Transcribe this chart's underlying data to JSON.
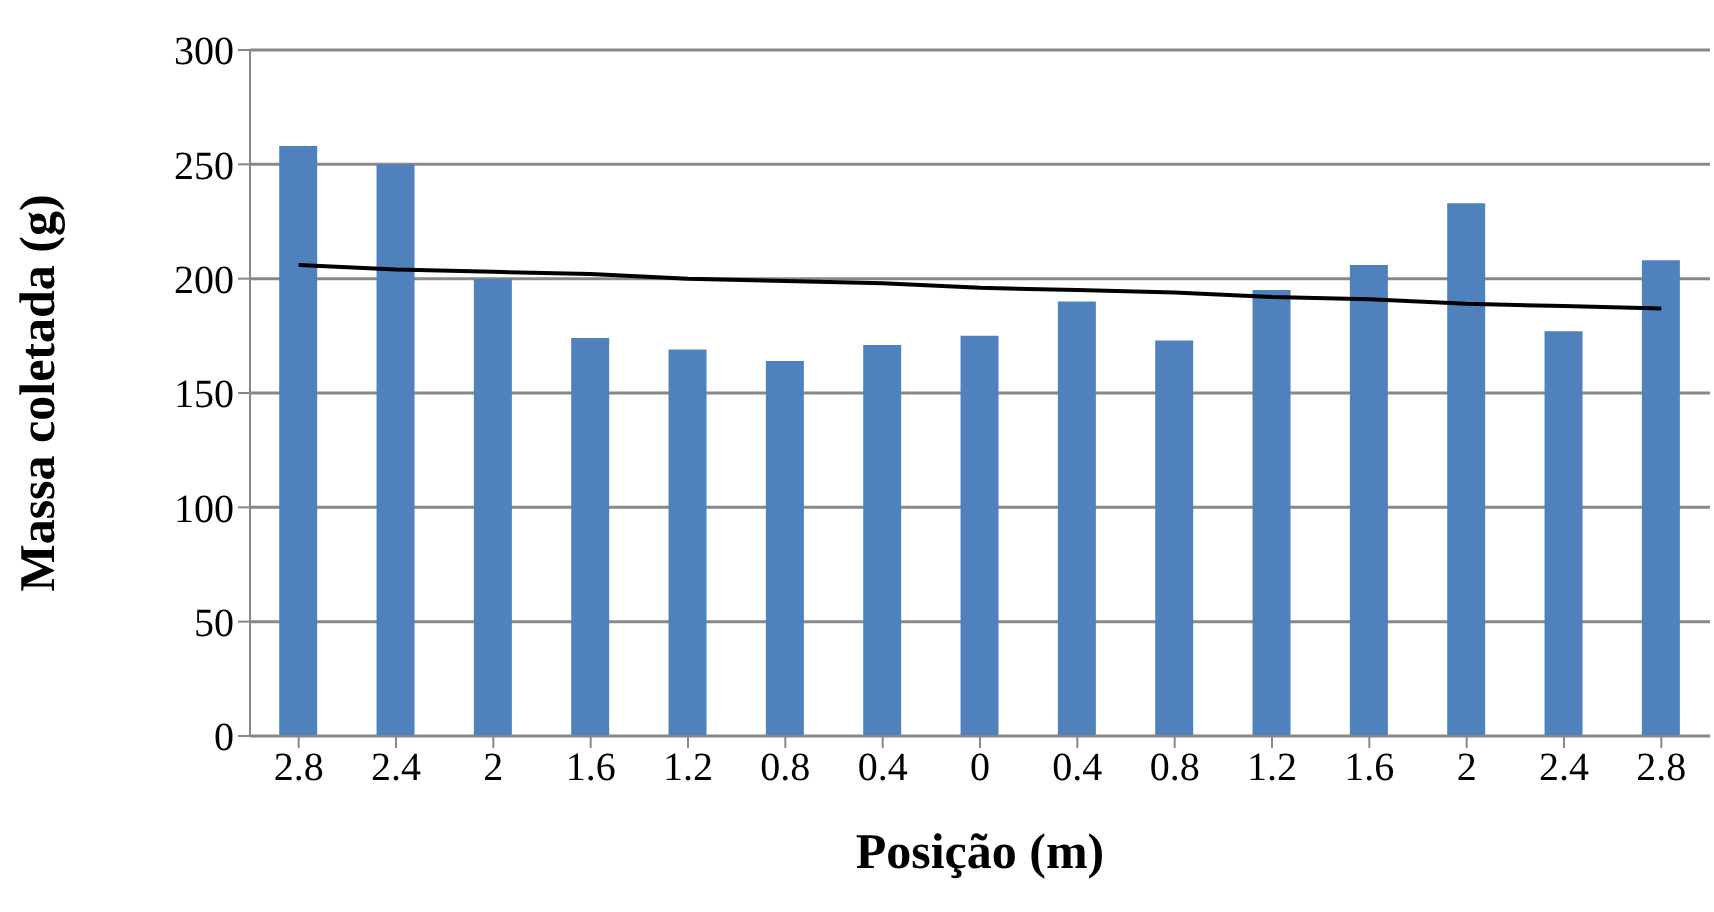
{
  "chart_data": {
    "type": "bar",
    "xlabel": "Posição (m)",
    "ylabel": "Massa coletada (g)",
    "categories": [
      "2.8",
      "2.4",
      "2",
      "1.6",
      "1.2",
      "0.8",
      "0.4",
      "0",
      "0.4",
      "0.8",
      "1.2",
      "1.6",
      "2",
      "2.4",
      "2.8"
    ],
    "series": [
      {
        "color": "#4f81bd",
        "values": [
          258,
          250,
          200,
          174,
          169,
          164,
          171,
          175,
          190,
          173,
          195,
          206,
          233,
          177,
          208
        ]
      },
      {
        "type": "line",
        "color": "#000000",
        "values": [
          206,
          204,
          203,
          202,
          200,
          199,
          198,
          196,
          195,
          194,
          192,
          191,
          189,
          188,
          187
        ]
      }
    ],
    "ylim": [
      0,
      300
    ],
    "yticks": [
      0,
      50,
      100,
      150,
      200,
      250,
      300
    ],
    "grid": "y",
    "legend": false,
    "marker": "none"
  }
}
